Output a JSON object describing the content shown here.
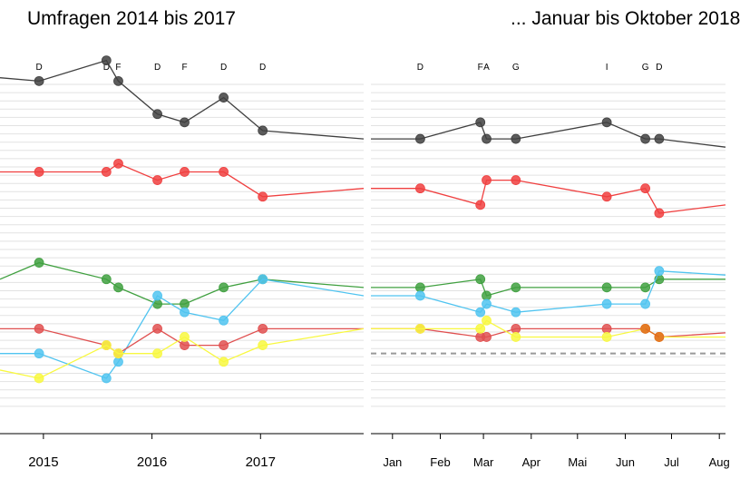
{
  "titles": {
    "left": "Umfragen 2014 bis 2017",
    "right": "... Januar bis Oktober 2018"
  },
  "chart_data": [
    {
      "type": "line",
      "title": "Umfragen 2014 bis 2017",
      "x_ticks": [
        "2015",
        "2016",
        "2017"
      ],
      "x_tick_values": [
        2015,
        2016,
        2017
      ],
      "xlim": [
        2014.6,
        2017.95
      ],
      "y_grid_lines": 40,
      "annotations_top": [
        {
          "x": 2014.96,
          "label": "D"
        },
        {
          "x": 2015.58,
          "label": "D"
        },
        {
          "x": 2015.69,
          "label": "F"
        },
        {
          "x": 2016.05,
          "label": "D"
        },
        {
          "x": 2016.3,
          "label": "F"
        },
        {
          "x": 2016.66,
          "label": "D"
        },
        {
          "x": 2017.02,
          "label": "D"
        }
      ],
      "series": [
        {
          "color": "#404040",
          "x": [
            2014.6,
            2014.96,
            2015.58,
            2015.69,
            2016.05,
            2016.3,
            2016.66,
            2017.02,
            2017.95
          ],
          "y": [
            0.8,
            0.4,
            2.9,
            0.4,
            -3.6,
            -4.6,
            -1.6,
            -5.6,
            -6.6
          ],
          "markers": [
            false,
            true,
            true,
            true,
            true,
            true,
            true,
            true,
            false
          ]
        },
        {
          "color": "#f04040",
          "x": [
            2014.6,
            2014.96,
            2015.58,
            2015.69,
            2016.05,
            2016.3,
            2016.66,
            2017.02,
            2017.95
          ],
          "y": [
            -10.6,
            -10.6,
            -10.6,
            -9.6,
            -11.6,
            -10.6,
            -10.6,
            -13.6,
            -12.6
          ],
          "markers": [
            false,
            true,
            true,
            true,
            true,
            true,
            true,
            true,
            false
          ]
        },
        {
          "color": "#40a040",
          "x": [
            2014.6,
            2014.96,
            2015.58,
            2015.69,
            2016.05,
            2016.3,
            2016.66,
            2017.02,
            2017.95
          ],
          "y": [
            -23.6,
            -21.6,
            -23.6,
            -24.6,
            -26.6,
            -26.6,
            -24.6,
            -23.6,
            -24.6
          ],
          "markers": [
            false,
            true,
            true,
            true,
            true,
            true,
            true,
            true,
            false
          ]
        },
        {
          "color": "#50c4f0",
          "x": [
            2014.6,
            2014.96,
            2015.58,
            2015.69,
            2016.05,
            2016.3,
            2016.66,
            2017.02,
            2017.95
          ],
          "y": [
            -32.6,
            -32.6,
            -35.6,
            -33.6,
            -25.6,
            -27.6,
            -28.6,
            -23.6,
            -25.6
          ],
          "markers": [
            false,
            true,
            true,
            true,
            true,
            true,
            true,
            true,
            false
          ]
        },
        {
          "color": "#e05050",
          "x": [
            2014.6,
            2014.96,
            2015.58,
            2015.69,
            2016.05,
            2016.3,
            2016.66,
            2017.02,
            2017.95
          ],
          "y": [
            -29.6,
            -29.6,
            -31.6,
            -32.6,
            -29.6,
            -31.6,
            -31.6,
            -29.6,
            -29.6
          ],
          "markers": [
            false,
            true,
            true,
            true,
            true,
            true,
            true,
            true,
            false
          ]
        },
        {
          "color": "#f8f840",
          "x": [
            2014.6,
            2014.96,
            2015.58,
            2015.69,
            2016.05,
            2016.3,
            2016.66,
            2017.02,
            2017.95
          ],
          "y": [
            -34.6,
            -35.6,
            -31.6,
            -32.6,
            -32.6,
            -30.6,
            -33.6,
            -31.6,
            -29.6
          ],
          "markers": [
            false,
            true,
            true,
            true,
            true,
            true,
            true,
            true,
            false
          ]
        }
      ]
    },
    {
      "type": "line",
      "title": "... Januar bis Oktober 2018",
      "x_ticks": [
        "Jan",
        "Feb",
        "Mar",
        "Apr",
        "Mai",
        "Jun",
        "Jul",
        "Aug"
      ],
      "x_tick_values": [
        0,
        31,
        59,
        90,
        120,
        151,
        181,
        212
      ],
      "xlim": [
        -14,
        216
      ],
      "y_grid_lines": 40,
      "reference_line_dashed": -32.6,
      "annotations_top": [
        {
          "x": 18,
          "label": "D"
        },
        {
          "x": 57,
          "label": "F"
        },
        {
          "x": 61,
          "label": "A"
        },
        {
          "x": 80,
          "label": "G"
        },
        {
          "x": 139,
          "label": "I"
        },
        {
          "x": 164,
          "label": "G"
        },
        {
          "x": 173,
          "label": "D"
        }
      ],
      "series": [
        {
          "color": "#404040",
          "x": [
            -14,
            18,
            57,
            61,
            80,
            139,
            164,
            173,
            216
          ],
          "y": [
            -6.6,
            -6.6,
            -4.6,
            -6.6,
            -6.6,
            -4.6,
            -6.6,
            -6.6,
            -7.6
          ],
          "markers": [
            false,
            true,
            true,
            true,
            true,
            true,
            true,
            true,
            false
          ]
        },
        {
          "color": "#f04040",
          "x": [
            -14,
            18,
            57,
            61,
            80,
            139,
            164,
            173,
            216
          ],
          "y": [
            -12.6,
            -12.6,
            -14.6,
            -11.6,
            -11.6,
            -13.6,
            -12.6,
            -15.6,
            -14.6
          ],
          "markers": [
            false,
            true,
            true,
            true,
            true,
            true,
            true,
            true,
            false
          ]
        },
        {
          "color": "#40a040",
          "x": [
            -14,
            18,
            57,
            61,
            80,
            139,
            164,
            173,
            216
          ],
          "y": [
            -24.6,
            -24.6,
            -23.6,
            -25.6,
            -24.6,
            -24.6,
            -24.6,
            -23.6,
            -23.6
          ],
          "markers": [
            false,
            true,
            true,
            true,
            true,
            true,
            true,
            true,
            false
          ]
        },
        {
          "color": "#50c4f0",
          "x": [
            -14,
            18,
            57,
            61,
            80,
            139,
            164,
            173,
            216
          ],
          "y": [
            -25.6,
            -25.6,
            -27.6,
            -26.6,
            -27.6,
            -26.6,
            -26.6,
            -22.6,
            -23.1
          ],
          "markers": [
            false,
            true,
            true,
            true,
            true,
            true,
            true,
            true,
            false
          ]
        },
        {
          "color": "#e05050",
          "x": [
            -14,
            18,
            57,
            61,
            80,
            139,
            164,
            173,
            216
          ],
          "y": [
            -29.6,
            -29.6,
            -30.6,
            -30.6,
            -29.6,
            -29.6,
            -29.6,
            -30.6,
            -30.1
          ],
          "markers": [
            false,
            true,
            true,
            true,
            true,
            true,
            true,
            true,
            false
          ]
        },
        {
          "color": "#f8f840",
          "x": [
            -14,
            18,
            57,
            61,
            80,
            139,
            164,
            173,
            216
          ],
          "y": [
            -29.6,
            -29.6,
            -29.6,
            -28.6,
            -30.6,
            -30.6,
            -29.6,
            -30.6,
            -30.6
          ],
          "markers": [
            false,
            true,
            true,
            true,
            true,
            true,
            true,
            true,
            false
          ]
        },
        {
          "color": "#e06a20",
          "x": [
            164,
            173
          ],
          "y": [
            -29.6,
            -30.6
          ],
          "markers": [
            true,
            true
          ]
        }
      ]
    }
  ]
}
